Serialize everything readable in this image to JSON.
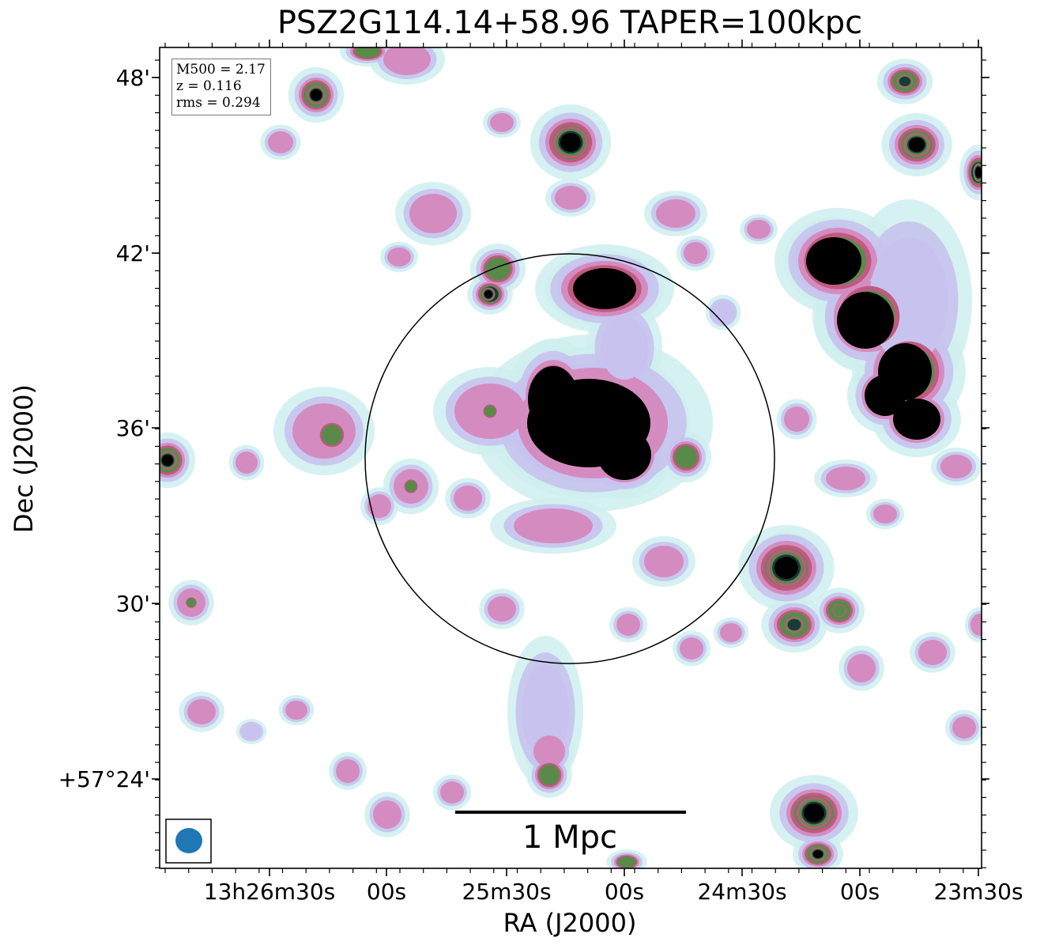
{
  "chart_data": {
    "type": "heatmap",
    "title": "PSZ2G114.14+58.96 TAPER=100kpc",
    "xlabel": "RA (J2000)",
    "ylabel": "Dec (J2000)",
    "x_tick_labels": [
      "13h26m30s",
      "00s",
      "25m30s",
      "00s",
      "24m30s",
      "00s",
      "23m30s"
    ],
    "y_tick_labels": [
      "48'",
      "42'",
      "36'",
      "30'",
      "+57°24'"
    ],
    "annotations": {
      "m500": "M500 = 2.17",
      "z": "z = 0.116",
      "rms": "rms = 0.294"
    },
    "scale_bar_label": "1 Mpc",
    "colormap": [
      "#ffffff",
      "#cfeeee",
      "#c7c3ee",
      "#d48cc0",
      "#c05a80",
      "#5a8a4a",
      "#1a3a3a",
      "#000000"
    ],
    "beam_color": "#1f77b4",
    "grid": false
  }
}
